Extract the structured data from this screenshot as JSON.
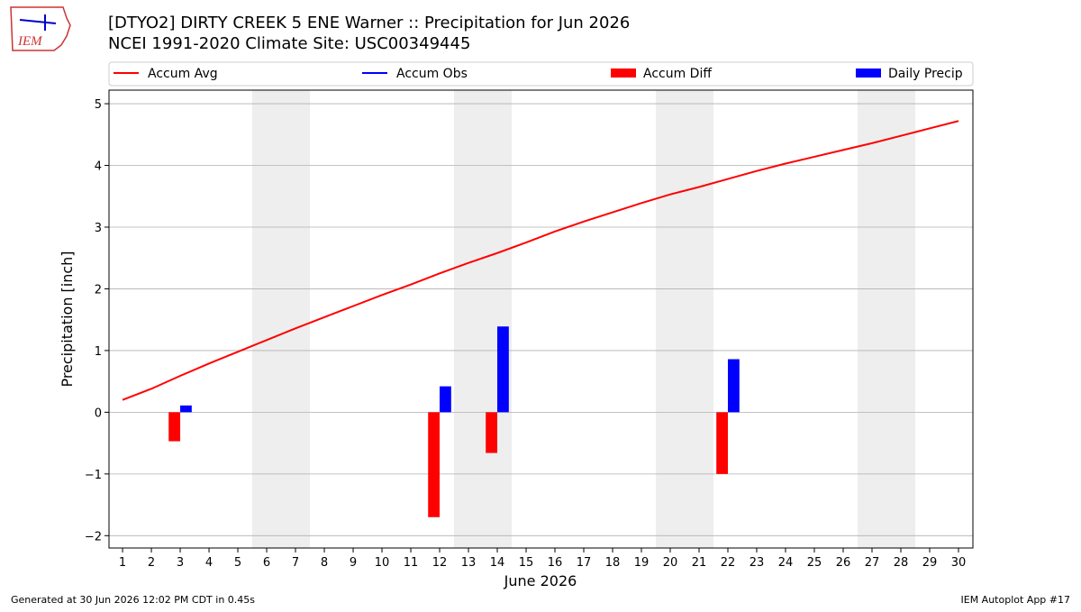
{
  "logo_text": "IEM",
  "footer": {
    "left": "Generated at 30 Jun 2026 12:02 PM CDT in 0.45s",
    "right": "IEM Autoplot App #17"
  },
  "chart_data": {
    "type": "line",
    "title": "[DTYO2] DIRTY CREEK 5 ENE Warner :: Precipitation for Jun 2026",
    "subtitle": "NCEI 1991-2020 Climate Site: USC00349445",
    "xlabel": "June 2026",
    "ylabel": "Precipitation [inch]",
    "x": [
      1,
      2,
      3,
      4,
      5,
      6,
      7,
      8,
      9,
      10,
      11,
      12,
      13,
      14,
      15,
      16,
      17,
      18,
      19,
      20,
      21,
      22,
      23,
      24,
      25,
      26,
      27,
      28,
      29,
      30
    ],
    "xlim": [
      0.53,
      30.5
    ],
    "xticks": [
      1,
      2,
      3,
      4,
      5,
      6,
      7,
      8,
      9,
      10,
      11,
      12,
      13,
      14,
      15,
      16,
      17,
      18,
      19,
      20,
      21,
      22,
      23,
      24,
      25,
      26,
      27,
      28,
      29,
      30
    ],
    "ylim": [
      -2.2,
      5.22
    ],
    "yticks": [
      {
        "value": -2,
        "label": "−2"
      },
      {
        "value": -1,
        "label": "−1"
      },
      0,
      1,
      2,
      3,
      4,
      5
    ],
    "grid": true,
    "weekend_shading": [
      [
        5.5,
        7.5
      ],
      [
        12.5,
        14.5
      ],
      [
        19.5,
        21.5
      ],
      [
        26.5,
        28.5
      ]
    ],
    "series": [
      {
        "name": "Accum Avg",
        "kind": "line",
        "color": "#ff0000",
        "values": [
          0.2,
          0.38,
          0.59,
          0.79,
          0.98,
          1.17,
          1.36,
          1.54,
          1.72,
          1.9,
          2.07,
          2.25,
          2.42,
          2.58,
          2.75,
          2.93,
          3.09,
          3.24,
          3.39,
          3.53,
          3.65,
          3.78,
          3.91,
          4.03,
          4.14,
          4.25,
          4.36,
          4.48,
          4.6,
          4.72
        ]
      },
      {
        "name": "Accum Obs",
        "kind": "line",
        "color": "#0000ff",
        "values": [
          null,
          null,
          null,
          null,
          null,
          null,
          null,
          null,
          null,
          null,
          null,
          null,
          null,
          null,
          null,
          null,
          null,
          null,
          null,
          null,
          null,
          null,
          null,
          null,
          null,
          null,
          null,
          null,
          null,
          null
        ]
      },
      {
        "name": "Accum Diff",
        "kind": "bar",
        "offset": -0.4,
        "color": "#ff0000",
        "values": [
          null,
          null,
          -0.47,
          null,
          null,
          null,
          null,
          null,
          null,
          null,
          null,
          -1.7,
          null,
          -0.66,
          null,
          null,
          null,
          null,
          null,
          null,
          null,
          -1.0,
          null,
          null,
          null,
          null,
          null,
          null,
          null,
          null
        ]
      },
      {
        "name": "Daily Precip",
        "kind": "bar",
        "offset": 0,
        "color": "#0000ff",
        "values": [
          null,
          null,
          0.11,
          null,
          null,
          null,
          null,
          null,
          null,
          null,
          null,
          0.42,
          null,
          1.39,
          null,
          null,
          null,
          null,
          null,
          null,
          null,
          0.86,
          null,
          null,
          null,
          null,
          null,
          null,
          null,
          null
        ]
      }
    ]
  }
}
